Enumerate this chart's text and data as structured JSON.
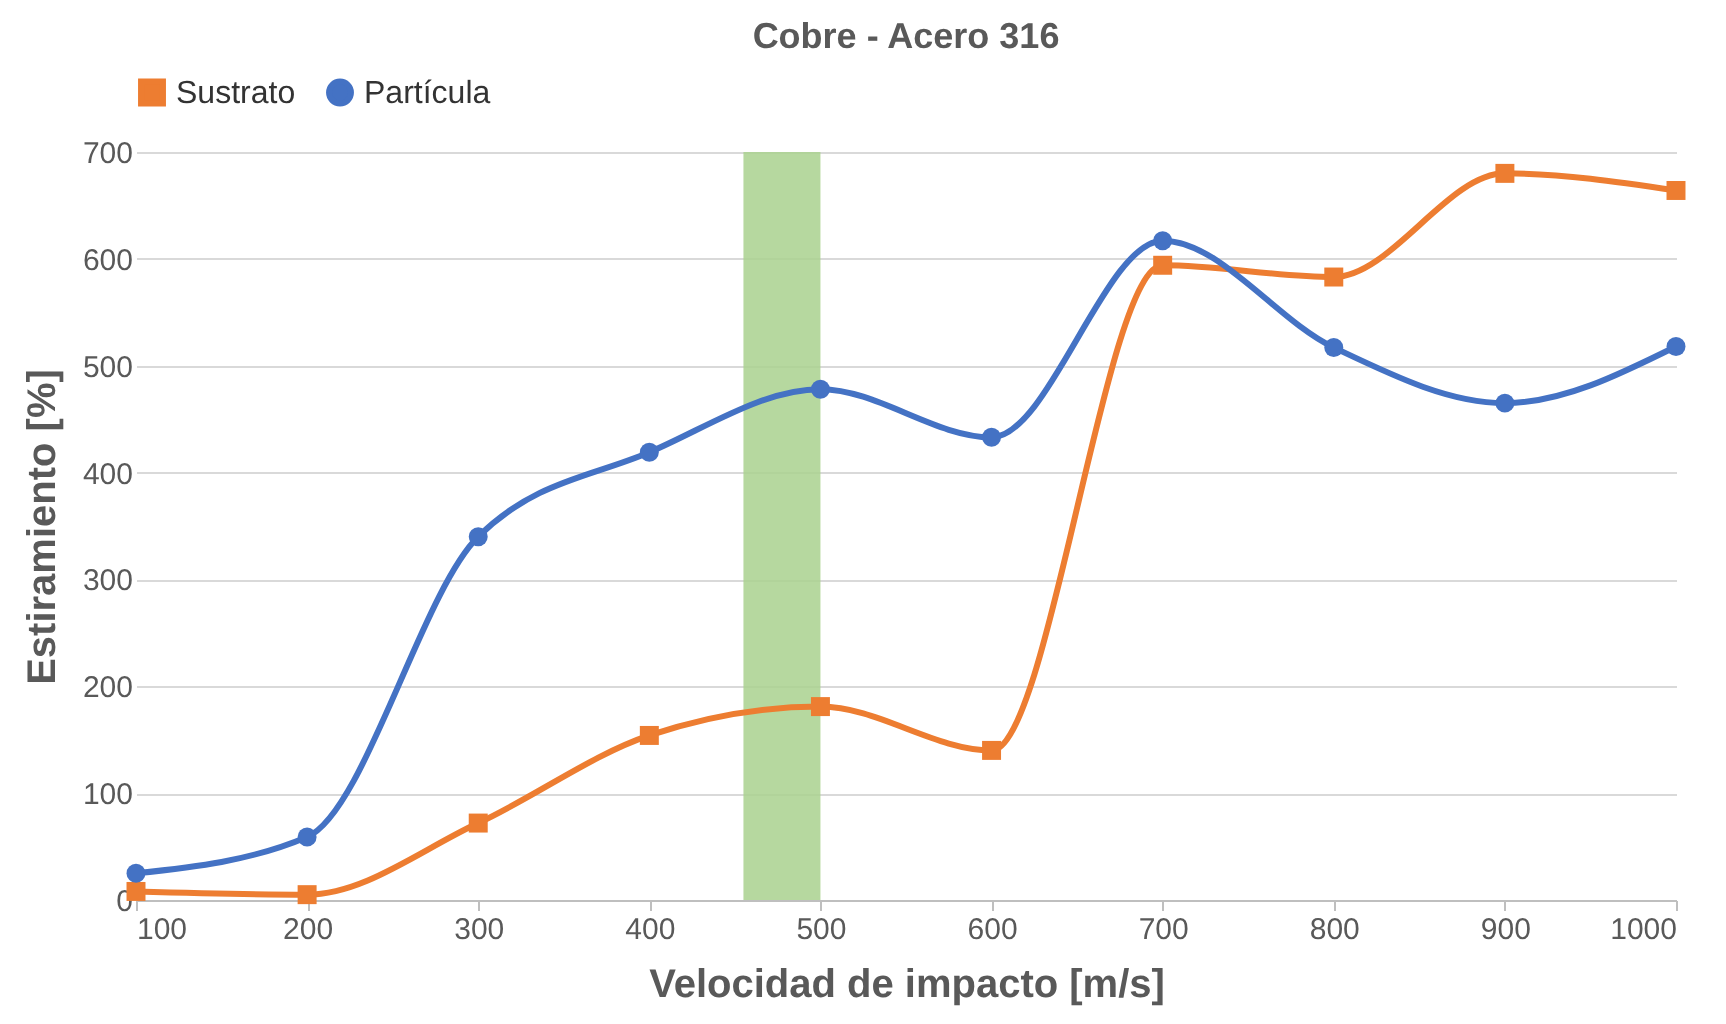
{
  "chart_data": {
    "type": "line",
    "title": "Cobre - Acero 316",
    "xlabel": "Velocidad de impacto [m/s]",
    "ylabel": "Estiramiento [%]",
    "x": [
      100,
      200,
      300,
      400,
      500,
      600,
      700,
      800,
      900,
      1000
    ],
    "series": [
      {
        "name": "Sustrato",
        "color": "#ed7d31",
        "marker": "square",
        "values": [
          8,
          5,
          72,
          154,
          181,
          140,
          594,
          583,
          680,
          664
        ]
      },
      {
        "name": "Partícula",
        "color": "#4472c4",
        "marker": "circle",
        "values": [
          25,
          59,
          340,
          419,
          478,
          433,
          617,
          517,
          465,
          518
        ]
      }
    ],
    "xlim": [
      100,
      1000
    ],
    "xticks": [
      100,
      200,
      300,
      400,
      500,
      600,
      700,
      800,
      900,
      1000
    ],
    "ylim": [
      0,
      700
    ],
    "yticks": [
      0,
      100,
      200,
      300,
      400,
      500,
      600,
      700
    ],
    "bands": [
      {
        "axis": "x",
        "from": 455,
        "to": 500,
        "color": "#a9d18e"
      }
    ],
    "grid": "y",
    "legend": "top",
    "line_style": "solid"
  }
}
